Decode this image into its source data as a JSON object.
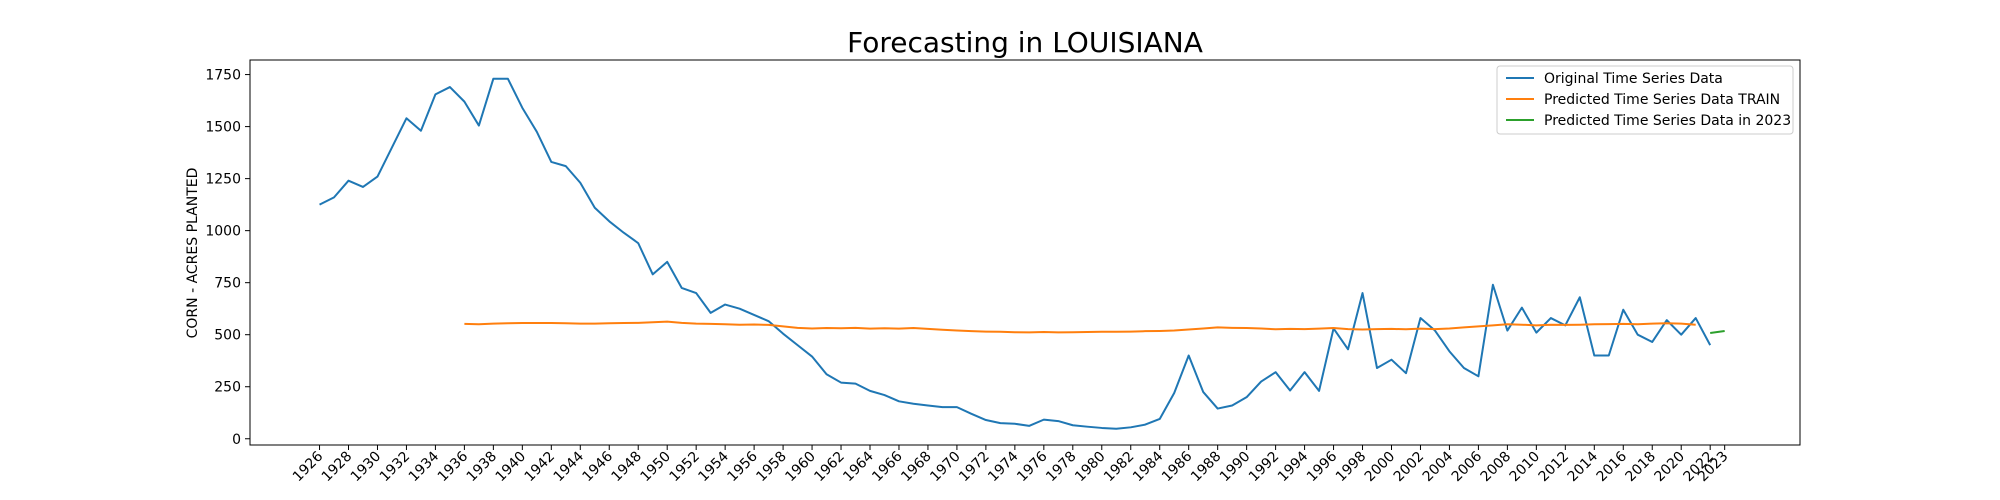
{
  "chart_data": {
    "type": "line",
    "title": "Forecasting in LOUISIANA",
    "xlabel": "",
    "ylabel": "CORN - ACRES PLANTED",
    "xlim": [
      1921.2,
      2028.2
    ],
    "ylim": [
      -30,
      1820
    ],
    "yticks": [
      0,
      250,
      500,
      750,
      1000,
      1250,
      1500,
      1750
    ],
    "xticks": [
      1926,
      1928,
      1930,
      1932,
      1934,
      1936,
      1938,
      1940,
      1942,
      1944,
      1946,
      1948,
      1950,
      1952,
      1954,
      1956,
      1958,
      1960,
      1962,
      1964,
      1966,
      1968,
      1970,
      1972,
      1974,
      1976,
      1978,
      1980,
      1982,
      1984,
      1986,
      1988,
      1990,
      1992,
      1994,
      1996,
      1998,
      2000,
      2002,
      2004,
      2006,
      2008,
      2010,
      2012,
      2014,
      2016,
      2018,
      2020,
      2022,
      2023
    ],
    "grid": false,
    "legend_position": "top-right",
    "series": [
      {
        "name": "Original Time Series Data",
        "color": "#1f77b4",
        "x": [
          1926,
          1927,
          1928,
          1929,
          1930,
          1931,
          1932,
          1933,
          1934,
          1935,
          1936,
          1937,
          1938,
          1939,
          1940,
          1941,
          1942,
          1943,
          1944,
          1945,
          1946,
          1947,
          1948,
          1949,
          1950,
          1951,
          1952,
          1953,
          1954,
          1955,
          1956,
          1957,
          1958,
          1959,
          1960,
          1961,
          1962,
          1963,
          1964,
          1965,
          1966,
          1967,
          1968,
          1969,
          1970,
          1971,
          1972,
          1973,
          1974,
          1975,
          1976,
          1977,
          1978,
          1979,
          1980,
          1981,
          1982,
          1983,
          1984,
          1985,
          1986,
          1987,
          1988,
          1989,
          1990,
          1991,
          1992,
          1993,
          1994,
          1995,
          1996,
          1997,
          1998,
          1999,
          2000,
          2001,
          2002,
          2003,
          2004,
          2005,
          2006,
          2007,
          2008,
          2009,
          2010,
          2011,
          2012,
          2013,
          2014,
          2015,
          2016,
          2017,
          2018,
          2019,
          2020,
          2021,
          2022
        ],
        "values": [
          1125,
          1160,
          1240,
          1210,
          1260,
          1400,
          1540,
          1480,
          1655,
          1690,
          1620,
          1505,
          1730,
          1730,
          1590,
          1475,
          1330,
          1310,
          1230,
          1110,
          1045,
          990,
          940,
          790,
          850,
          725,
          700,
          605,
          645,
          625,
          595,
          565,
          505,
          450,
          395,
          310,
          270,
          265,
          230,
          210,
          180,
          168,
          160,
          152,
          152,
          120,
          90,
          75,
          72,
          62,
          92,
          85,
          65,
          58,
          52,
          48,
          55,
          68,
          95,
          220,
          400,
          225,
          145,
          160,
          200,
          275,
          320,
          232,
          320,
          230,
          530,
          430,
          700,
          340,
          380,
          315,
          580,
          520,
          420,
          340,
          300,
          740,
          520,
          630,
          510,
          580,
          545,
          680,
          400,
          400,
          620,
          500,
          465,
          570,
          500,
          580,
          450
        ]
      },
      {
        "name": "Predicted Time Series Data TRAIN",
        "color": "#ff7f0e",
        "x": [
          1936,
          1937,
          1938,
          1939,
          1940,
          1941,
          1942,
          1943,
          1944,
          1945,
          1946,
          1947,
          1948,
          1949,
          1950,
          1951,
          1952,
          1953,
          1954,
          1955,
          1956,
          1957,
          1958,
          1959,
          1960,
          1961,
          1962,
          1963,
          1964,
          1965,
          1966,
          1967,
          1968,
          1969,
          1970,
          1971,
          1972,
          1973,
          1974,
          1975,
          1976,
          1977,
          1978,
          1979,
          1980,
          1981,
          1982,
          1983,
          1984,
          1985,
          1986,
          1987,
          1988,
          1989,
          1990,
          1991,
          1992,
          1993,
          1994,
          1995,
          1996,
          1997,
          1998,
          1999,
          2000,
          2001,
          2002,
          2003,
          2004,
          2005,
          2006,
          2007,
          2008,
          2009,
          2010,
          2011,
          2012,
          2013,
          2014,
          2015,
          2016,
          2017,
          2018,
          2019,
          2020,
          2021
        ],
        "values": [
          552,
          550,
          553,
          555,
          556,
          556,
          556,
          555,
          553,
          553,
          555,
          556,
          557,
          560,
          563,
          557,
          553,
          552,
          550,
          548,
          549,
          547,
          540,
          533,
          530,
          532,
          531,
          533,
          529,
          531,
          529,
          532,
          528,
          524,
          520,
          517,
          515,
          514,
          512,
          511,
          513,
          511,
          512,
          513,
          514,
          514,
          515,
          517,
          518,
          520,
          525,
          530,
          535,
          533,
          532,
          530,
          526,
          528,
          527,
          529,
          532,
          527,
          525,
          527,
          528,
          526,
          529,
          527,
          530,
          535,
          540,
          545,
          550,
          548,
          545,
          548,
          547,
          548,
          550,
          551,
          552,
          550,
          553,
          555,
          553,
          548
        ]
      },
      {
        "name": "Predicted Time Series Data in 2023",
        "color": "#2ca02c",
        "x": [
          2022,
          2023
        ],
        "values": [
          508,
          518
        ]
      }
    ]
  }
}
